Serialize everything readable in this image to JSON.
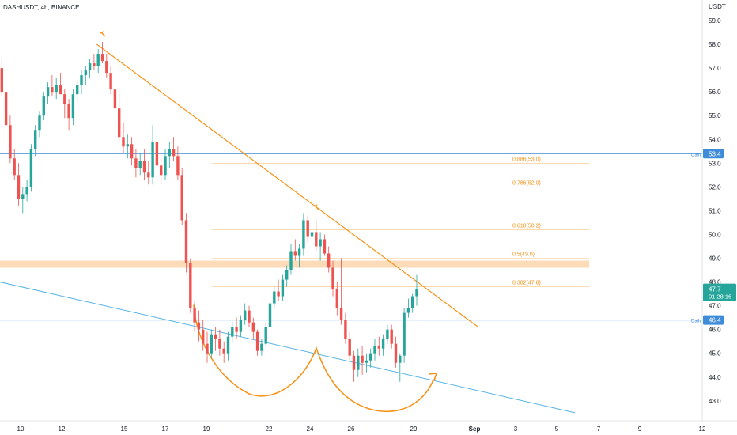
{
  "header": {
    "symbol_label": "DASHUSDT, 4h, BINANCE"
  },
  "axes": {
    "y_unit": "USDT",
    "y_ticks": [
      "59.0",
      "58.0",
      "57.0",
      "56.0",
      "55.0",
      "54.0",
      "53.0",
      "52.0",
      "51.0",
      "50.0",
      "49.0",
      "48.0",
      "47.0",
      "46.0",
      "45.0",
      "44.0",
      "43.0"
    ],
    "x_ticks": [
      "10",
      "12",
      "15",
      "17",
      "19",
      "22",
      "24",
      "26",
      "29",
      "Sep",
      "3",
      "5",
      "7",
      "9",
      "12"
    ]
  },
  "price_tags": {
    "resistance": {
      "value": "53.4",
      "note": "Daily"
    },
    "support": {
      "value": "46.4",
      "note": "Daily"
    },
    "last": {
      "value": "47.7",
      "countdown": "01:28:16"
    }
  },
  "fib_levels": [
    {
      "label": "0.886(53.0)",
      "value": 53.0
    },
    {
      "label": "0.786(52.0)",
      "value": 52.0
    },
    {
      "label": "0.618(50.2)",
      "value": 50.2
    },
    {
      "label": "0.5(49.0)",
      "value": 49.0
    },
    {
      "label": "0.382(47.8)",
      "value": 47.8
    }
  ],
  "colors": {
    "up": "#26a69a",
    "down": "#ef5350",
    "orange": "#f7931a",
    "blue": "#3d8bd9",
    "light_blue": "#55b3e6",
    "zone": "#f9cfa0",
    "axis_text": "#131722",
    "tag_text": "#ffffff"
  },
  "chart_data": {
    "type": "candlestick",
    "timeframe": "4h",
    "x_start_date": "Aug 9",
    "ylim": [
      42.5,
      59.6
    ],
    "candles": [
      [
        57.0,
        57.4,
        55.8,
        56.0
      ],
      [
        56.0,
        56.3,
        54.2,
        54.6
      ],
      [
        54.6,
        55.0,
        53.0,
        53.2
      ],
      [
        53.2,
        53.6,
        52.3,
        52.5
      ],
      [
        52.5,
        53.0,
        51.2,
        51.5
      ],
      [
        51.5,
        52.0,
        50.9,
        51.7
      ],
      [
        51.7,
        52.3,
        51.4,
        52.0
      ],
      [
        52.0,
        53.8,
        51.8,
        53.6
      ],
      [
        53.6,
        54.6,
        53.3,
        54.4
      ],
      [
        54.4,
        55.2,
        54.1,
        55.0
      ],
      [
        55.0,
        56.0,
        54.8,
        55.8
      ],
      [
        55.8,
        56.4,
        55.5,
        56.2
      ],
      [
        56.2,
        56.7,
        55.8,
        56.0
      ],
      [
        56.0,
        56.6,
        55.7,
        56.3
      ],
      [
        56.3,
        56.8,
        55.9,
        55.9
      ],
      [
        55.9,
        56.1,
        54.9,
        55.5
      ],
      [
        55.5,
        55.7,
        54.4,
        54.9
      ],
      [
        54.9,
        56.1,
        54.6,
        55.9
      ],
      [
        55.9,
        56.5,
        55.6,
        56.3
      ],
      [
        56.3,
        56.9,
        55.9,
        56.7
      ],
      [
        56.7,
        57.1,
        56.3,
        56.9
      ],
      [
        56.9,
        57.4,
        56.6,
        57.2
      ],
      [
        57.2,
        57.6,
        56.9,
        57.1
      ],
      [
        57.1,
        57.8,
        56.8,
        57.6
      ],
      [
        57.6,
        58.1,
        57.2,
        57.3
      ],
      [
        57.3,
        57.6,
        56.6,
        56.8
      ],
      [
        56.8,
        57.1,
        55.9,
        56.1
      ],
      [
        56.1,
        56.5,
        55.1,
        55.3
      ],
      [
        55.3,
        55.9,
        53.9,
        54.1
      ],
      [
        54.1,
        54.7,
        53.4,
        53.7
      ],
      [
        53.7,
        54.2,
        53.2,
        53.8
      ],
      [
        53.8,
        54.1,
        52.9,
        53.2
      ],
      [
        53.2,
        53.6,
        52.4,
        52.8
      ],
      [
        52.8,
        53.4,
        52.5,
        53.1
      ],
      [
        53.1,
        53.6,
        52.3,
        52.6
      ],
      [
        52.6,
        53.1,
        52.1,
        52.4
      ],
      [
        52.4,
        54.6,
        52.1,
        53.9
      ],
      [
        53.9,
        54.3,
        52.7,
        52.9
      ],
      [
        52.9,
        53.3,
        52.1,
        52.5
      ],
      [
        52.5,
        53.6,
        52.3,
        53.3
      ],
      [
        53.3,
        53.9,
        52.8,
        53.6
      ],
      [
        53.6,
        54.1,
        53.1,
        53.3
      ],
      [
        53.3,
        53.7,
        52.3,
        52.5
      ],
      [
        52.5,
        52.8,
        50.4,
        50.6
      ],
      [
        50.6,
        50.9,
        48.4,
        48.8
      ],
      [
        48.8,
        49.0,
        46.7,
        46.9
      ],
      [
        46.9,
        47.2,
        45.9,
        46.3
      ],
      [
        46.3,
        46.8,
        45.5,
        46.0
      ],
      [
        46.0,
        46.4,
        45.1,
        45.4
      ],
      [
        45.4,
        45.9,
        44.6,
        45.0
      ],
      [
        45.0,
        46.0,
        44.8,
        45.8
      ],
      [
        45.8,
        46.1,
        45.1,
        45.6
      ],
      [
        45.6,
        46.0,
        44.9,
        45.2
      ],
      [
        45.2,
        45.5,
        44.6,
        45.0
      ],
      [
        45.0,
        45.9,
        44.7,
        45.7
      ],
      [
        45.7,
        46.3,
        45.5,
        46.1
      ],
      [
        46.1,
        46.5,
        45.6,
        45.9
      ],
      [
        45.9,
        46.6,
        45.7,
        46.4
      ],
      [
        46.4,
        47.1,
        46.2,
        46.8
      ],
      [
        46.8,
        47.0,
        46.1,
        46.3
      ],
      [
        46.3,
        46.5,
        45.6,
        45.9
      ],
      [
        45.9,
        46.0,
        44.9,
        45.1
      ],
      [
        45.1,
        45.6,
        44.9,
        45.4
      ],
      [
        45.4,
        46.3,
        45.3,
        46.1
      ],
      [
        46.1,
        47.3,
        45.9,
        47.1
      ],
      [
        47.1,
        47.8,
        46.9,
        47.6
      ],
      [
        47.6,
        48.1,
        47.2,
        47.4
      ],
      [
        47.4,
        48.3,
        47.2,
        48.1
      ],
      [
        48.1,
        48.7,
        47.8,
        48.5
      ],
      [
        48.5,
        49.6,
        48.3,
        49.3
      ],
      [
        49.3,
        49.8,
        48.9,
        49.1
      ],
      [
        49.1,
        49.6,
        48.6,
        49.4
      ],
      [
        49.4,
        50.9,
        49.1,
        50.6
      ],
      [
        50.6,
        50.8,
        49.7,
        49.9
      ],
      [
        49.9,
        50.4,
        49.4,
        50.1
      ],
      [
        50.1,
        50.6,
        49.3,
        49.5
      ],
      [
        49.5,
        50.1,
        48.9,
        49.8
      ],
      [
        49.8,
        50.0,
        49.1,
        49.2
      ],
      [
        49.2,
        49.5,
        48.4,
        48.6
      ],
      [
        48.6,
        48.9,
        47.4,
        47.7
      ],
      [
        47.7,
        48.0,
        46.6,
        46.9
      ],
      [
        46.9,
        49.0,
        46.2,
        46.4
      ],
      [
        46.4,
        46.7,
        45.4,
        45.6
      ],
      [
        45.6,
        45.9,
        44.7,
        44.9
      ],
      [
        44.9,
        45.1,
        43.8,
        44.3
      ],
      [
        44.3,
        45.2,
        44.0,
        44.9
      ],
      [
        44.9,
        45.3,
        44.1,
        44.6
      ],
      [
        44.6,
        45.0,
        44.2,
        44.7
      ],
      [
        44.7,
        45.2,
        44.4,
        45.0
      ],
      [
        45.0,
        45.6,
        44.7,
        45.3
      ],
      [
        45.3,
        45.7,
        44.9,
        45.2
      ],
      [
        45.2,
        45.8,
        44.9,
        45.6
      ],
      [
        45.6,
        46.2,
        45.4,
        46.0
      ],
      [
        46.0,
        46.2,
        45.2,
        45.4
      ],
      [
        45.4,
        45.7,
        44.4,
        44.6
      ],
      [
        44.6,
        45.0,
        43.8,
        44.9
      ],
      [
        44.9,
        46.9,
        44.6,
        46.7
      ],
      [
        46.7,
        47.3,
        46.5,
        46.9
      ],
      [
        46.9,
        47.5,
        46.7,
        47.4
      ],
      [
        47.4,
        48.3,
        47.0,
        47.7
      ]
    ],
    "orange_downtrend_line": [
      [
        0,
        58.0
      ],
      [
        102,
        49.6
      ],
      [
        132,
        46.1
      ]
    ],
    "blue_channel_line": [
      [
        0,
        48.0
      ],
      [
        182,
        42.5
      ]
    ],
    "horizontal_levels": [
      53.4,
      46.4
    ],
    "supply_zone": [
      48.6,
      48.9
    ]
  }
}
